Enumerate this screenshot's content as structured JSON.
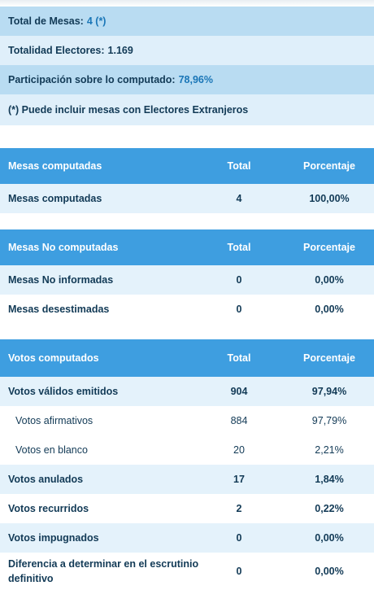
{
  "summary": {
    "total_mesas_label": "Total de Mesas:",
    "total_mesas_value": "4 (*)",
    "totalidad_electores_label": "Totalidad Electores:",
    "totalidad_electores_value": "1.169",
    "participacion_label": "Participación sobre lo computado:",
    "participacion_value": "78,96%",
    "note": "(*) Puede incluir mesas con Electores Extranjeros"
  },
  "mesas_computadas": {
    "headers": [
      "Mesas computadas",
      "Total",
      "Porcentaje"
    ],
    "rows": [
      {
        "label": "Mesas computadas",
        "total": "4",
        "pct": "100,00%"
      }
    ]
  },
  "mesas_no_computadas": {
    "headers": [
      "Mesas No computadas",
      "Total",
      "Porcentaje"
    ],
    "rows": [
      {
        "label": "Mesas No informadas",
        "total": "0",
        "pct": "0,00%"
      },
      {
        "label": "Mesas desestimadas",
        "total": "0",
        "pct": "0,00%"
      }
    ]
  },
  "votos_computados": {
    "headers": [
      "Votos computados",
      "Total",
      "Porcentaje"
    ],
    "rows": [
      {
        "label": "Votos válidos emitidos",
        "total": "904",
        "pct": "97,94%"
      },
      {
        "label": "Votos afirmativos",
        "total": "884",
        "pct": "97,79%"
      },
      {
        "label": "Votos en blanco",
        "total": "20",
        "pct": "2,21%"
      },
      {
        "label": "Votos anulados",
        "total": "17",
        "pct": "1,84%"
      },
      {
        "label": "Votos recurridos",
        "total": "2",
        "pct": "0,22%"
      },
      {
        "label": "Votos impugnados",
        "total": "0",
        "pct": "0,00%"
      },
      {
        "label": "Diferencia a determinar en el escrutinio definitivo",
        "total": "0",
        "pct": "0,00%"
      }
    ]
  },
  "colors": {
    "header_blue": "#3e9ee0",
    "summary_dark": "#b9dcf2",
    "summary_light": "#dfeffa",
    "row_shade": "#e4f2fb",
    "value_blue": "#1a76b7",
    "text_dark": "#123a56"
  }
}
